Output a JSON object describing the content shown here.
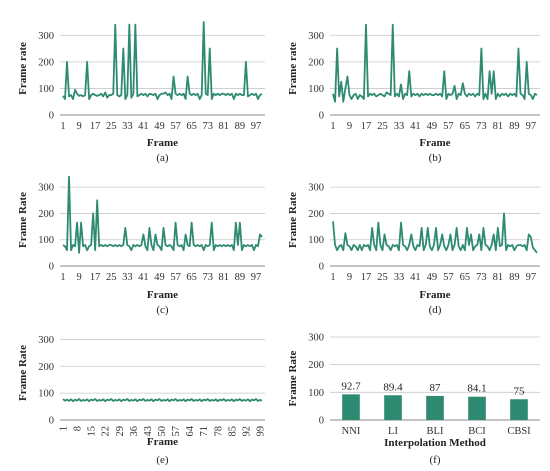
{
  "colors": {
    "series": "#2e8b72",
    "grid": "#c8c8c8",
    "text": "#222222"
  },
  "chart_data": [
    {
      "type": "line",
      "caption": "(a)",
      "xlabel": "Frame",
      "ylabel": "Frame rate",
      "ylim": [
        0,
        350
      ],
      "yticks": [
        0,
        100,
        200,
        300
      ],
      "xlim": [
        1,
        100
      ],
      "xticks": [
        1,
        9,
        17,
        25,
        33,
        41,
        49,
        57,
        65,
        73,
        81,
        89,
        97
      ],
      "grid": true,
      "x": [
        1,
        2,
        3,
        4,
        5,
        6,
        7,
        8,
        9,
        10,
        11,
        12,
        13,
        14,
        15,
        16,
        17,
        18,
        19,
        20,
        21,
        22,
        23,
        24,
        25,
        26,
        27,
        28,
        29,
        30,
        31,
        32,
        33,
        34,
        35,
        36,
        37,
        38,
        39,
        40,
        41,
        42,
        43,
        44,
        45,
        46,
        47,
        48,
        49,
        50,
        51,
        52,
        53,
        54,
        55,
        56,
        57,
        58,
        59,
        60,
        61,
        62,
        63,
        64,
        65,
        66,
        67,
        68,
        69,
        70,
        71,
        72,
        73,
        74,
        75,
        76,
        77,
        78,
        79,
        80,
        81,
        82,
        83,
        84,
        85,
        86,
        87,
        88,
        89,
        90,
        91,
        92,
        93,
        94,
        95,
        96,
        97,
        98,
        99,
        100
      ],
      "values": [
        72,
        60,
        200,
        70,
        75,
        60,
        95,
        80,
        72,
        75,
        70,
        75,
        200,
        60,
        75,
        80,
        75,
        72,
        75,
        80,
        70,
        85,
        65,
        75,
        75,
        80,
        340,
        75,
        70,
        75,
        250,
        60,
        75,
        340,
        65,
        80,
        340,
        70,
        75,
        80,
        75,
        80,
        70,
        80,
        78,
        75,
        80,
        60,
        75,
        80,
        80,
        85,
        75,
        80,
        60,
        145,
        80,
        75,
        80,
        75,
        80,
        60,
        145,
        80,
        75,
        80,
        75,
        80,
        60,
        75,
        350,
        80,
        75,
        250,
        60,
        80,
        75,
        80,
        75,
        80,
        80,
        75,
        80,
        75,
        80,
        60,
        80,
        75,
        80,
        75,
        75,
        200,
        70,
        75,
        80,
        75,
        80,
        60,
        75,
        80
      ]
    },
    {
      "type": "line",
      "caption": "(b)",
      "xlabel": "Frame",
      "ylabel": "Frame rate",
      "ylim": [
        0,
        350
      ],
      "yticks": [
        0,
        100,
        200,
        300
      ],
      "xlim": [
        1,
        100
      ],
      "xticks": [
        1,
        9,
        17,
        25,
        33,
        41,
        49,
        57,
        65,
        73,
        81,
        89,
        97
      ],
      "grid": true,
      "x": [
        1,
        2,
        3,
        4,
        5,
        6,
        7,
        8,
        9,
        10,
        11,
        12,
        13,
        14,
        15,
        16,
        17,
        18,
        19,
        20,
        21,
        22,
        23,
        24,
        25,
        26,
        27,
        28,
        29,
        30,
        31,
        32,
        33,
        34,
        35,
        36,
        37,
        38,
        39,
        40,
        41,
        42,
        43,
        44,
        45,
        46,
        47,
        48,
        49,
        50,
        51,
        52,
        53,
        54,
        55,
        56,
        57,
        58,
        59,
        60,
        61,
        62,
        63,
        64,
        65,
        66,
        67,
        68,
        69,
        70,
        71,
        72,
        73,
        74,
        75,
        76,
        77,
        78,
        79,
        80,
        81,
        82,
        83,
        84,
        85,
        86,
        87,
        88,
        89,
        90,
        91,
        92,
        93,
        94,
        95,
        96,
        97,
        98,
        99,
        100
      ],
      "values": [
        80,
        50,
        250,
        70,
        125,
        50,
        100,
        145,
        75,
        60,
        75,
        80,
        60,
        75,
        70,
        60,
        340,
        70,
        80,
        75,
        80,
        70,
        75,
        80,
        75,
        70,
        85,
        80,
        75,
        340,
        70,
        80,
        70,
        115,
        60,
        80,
        75,
        165,
        70,
        80,
        75,
        80,
        70,
        80,
        75,
        80,
        75,
        80,
        75,
        75,
        80,
        75,
        80,
        70,
        165,
        60,
        80,
        75,
        80,
        110,
        60,
        80,
        75,
        120,
        80,
        70,
        80,
        75,
        80,
        70,
        80,
        75,
        250,
        60,
        80,
        60,
        165,
        80,
        165,
        60,
        80,
        70,
        80,
        75,
        80,
        70,
        80,
        75,
        80,
        70,
        250,
        80,
        75,
        60,
        200,
        80,
        75,
        60,
        80,
        75
      ]
    },
    {
      "type": "line",
      "caption": "(c)",
      "xlabel": "Frame",
      "ylabel": "Frame Rate",
      "ylim": [
        0,
        350
      ],
      "yticks": [
        0,
        100,
        200,
        300
      ],
      "xlim": [
        1,
        100
      ],
      "xticks": [
        1,
        9,
        17,
        25,
        33,
        41,
        49,
        57,
        65,
        73,
        81,
        89,
        97
      ],
      "grid": true,
      "x": [
        1,
        2,
        3,
        4,
        5,
        6,
        7,
        8,
        9,
        10,
        11,
        12,
        13,
        14,
        15,
        16,
        17,
        18,
        19,
        20,
        21,
        22,
        23,
        24,
        25,
        26,
        27,
        28,
        29,
        30,
        31,
        32,
        33,
        34,
        35,
        36,
        37,
        38,
        39,
        40,
        41,
        42,
        43,
        44,
        45,
        46,
        47,
        48,
        49,
        50,
        51,
        52,
        53,
        54,
        55,
        56,
        57,
        58,
        59,
        60,
        61,
        62,
        63,
        64,
        65,
        66,
        67,
        68,
        69,
        70,
        71,
        72,
        73,
        74,
        75,
        76,
        77,
        78,
        79,
        80,
        81,
        82,
        83,
        84,
        85,
        86,
        87,
        88,
        89,
        90,
        91,
        92,
        93,
        94,
        95,
        96,
        97,
        98,
        99,
        100
      ],
      "values": [
        80,
        75,
        60,
        340,
        60,
        80,
        75,
        165,
        50,
        165,
        75,
        80,
        60,
        75,
        80,
        200,
        60,
        250,
        75,
        80,
        75,
        80,
        75,
        80,
        80,
        75,
        80,
        75,
        80,
        75,
        80,
        145,
        80,
        75,
        60,
        80,
        75,
        80,
        75,
        80,
        120,
        75,
        60,
        145,
        80,
        60,
        120,
        80,
        75,
        60,
        145,
        80,
        75,
        80,
        75,
        60,
        165,
        80,
        75,
        80,
        60,
        120,
        80,
        75,
        165,
        80,
        75,
        80,
        75,
        80,
        60,
        80,
        75,
        80,
        165,
        60,
        80,
        75,
        80,
        75,
        80,
        75,
        80,
        75,
        80,
        60,
        165,
        80,
        165,
        60,
        80,
        75,
        80,
        75,
        80,
        60,
        80,
        75,
        120,
        110
      ]
    },
    {
      "type": "line",
      "caption": "(d)",
      "xlabel": "Frame",
      "ylabel": "Frame Rate",
      "ylim": [
        0,
        350
      ],
      "yticks": [
        0,
        100,
        200,
        300
      ],
      "xlim": [
        1,
        100
      ],
      "xticks": [
        1,
        9,
        17,
        25,
        33,
        41,
        49,
        57,
        65,
        73,
        81,
        89,
        97
      ],
      "grid": true,
      "x": [
        1,
        2,
        3,
        4,
        5,
        6,
        7,
        8,
        9,
        10,
        11,
        12,
        13,
        14,
        15,
        16,
        17,
        18,
        19,
        20,
        21,
        22,
        23,
        24,
        25,
        26,
        27,
        28,
        29,
        30,
        31,
        32,
        33,
        34,
        35,
        36,
        37,
        38,
        39,
        40,
        41,
        42,
        43,
        44,
        45,
        46,
        47,
        48,
        49,
        50,
        51,
        52,
        53,
        54,
        55,
        56,
        57,
        58,
        59,
        60,
        61,
        62,
        63,
        64,
        65,
        66,
        67,
        68,
        69,
        70,
        71,
        72,
        73,
        74,
        75,
        76,
        77,
        78,
        79,
        80,
        81,
        82,
        83,
        84,
        85,
        86,
        87,
        88,
        89,
        90,
        91,
        92,
        93,
        94,
        95,
        96,
        97,
        98,
        99,
        100
      ],
      "values": [
        170,
        80,
        60,
        75,
        80,
        60,
        125,
        80,
        75,
        60,
        80,
        75,
        60,
        80,
        60,
        80,
        75,
        80,
        60,
        145,
        80,
        60,
        165,
        80,
        60,
        120,
        80,
        75,
        60,
        80,
        75,
        80,
        60,
        165,
        80,
        75,
        60,
        80,
        120,
        75,
        60,
        80,
        75,
        145,
        60,
        80,
        145,
        75,
        60,
        80,
        145,
        60,
        80,
        120,
        75,
        60,
        80,
        120,
        60,
        80,
        145,
        75,
        60,
        80,
        60,
        145,
        80,
        120,
        60,
        75,
        80,
        120,
        60,
        145,
        80,
        75,
        60,
        80,
        120,
        60,
        145,
        75,
        80,
        200,
        60,
        80,
        75,
        80,
        60,
        75,
        80,
        80,
        75,
        80,
        60,
        120,
        110,
        70,
        60,
        50
      ]
    },
    {
      "type": "line",
      "caption": "(e)",
      "xlabel": "Frame",
      "ylabel": "Frame Rate",
      "ylim": [
        0,
        350
      ],
      "yticks": [
        0,
        100,
        200,
        300
      ],
      "xlim": [
        1,
        100
      ],
      "xticks": [
        1,
        8,
        15,
        22,
        29,
        36,
        43,
        50,
        57,
        64,
        71,
        78,
        85,
        92,
        99
      ],
      "grid": true,
      "x": [
        1,
        2,
        3,
        4,
        5,
        6,
        7,
        8,
        9,
        10,
        11,
        12,
        13,
        14,
        15,
        16,
        17,
        18,
        19,
        20,
        21,
        22,
        23,
        24,
        25,
        26,
        27,
        28,
        29,
        30,
        31,
        32,
        33,
        34,
        35,
        36,
        37,
        38,
        39,
        40,
        41,
        42,
        43,
        44,
        45,
        46,
        47,
        48,
        49,
        50,
        51,
        52,
        53,
        54,
        55,
        56,
        57,
        58,
        59,
        60,
        61,
        62,
        63,
        64,
        65,
        66,
        67,
        68,
        69,
        70,
        71,
        72,
        73,
        74,
        75,
        76,
        77,
        78,
        79,
        80,
        81,
        82,
        83,
        84,
        85,
        86,
        87,
        88,
        89,
        90,
        91,
        92,
        93,
        94,
        95,
        96,
        97,
        98,
        99,
        100
      ],
      "values": [
        78,
        72,
        76,
        71,
        77,
        70,
        76,
        72,
        78,
        71,
        75,
        72,
        77,
        70,
        76,
        73,
        78,
        71,
        75,
        72,
        77,
        70,
        76,
        73,
        78,
        71,
        75,
        72,
        77,
        70,
        76,
        73,
        78,
        71,
        75,
        72,
        77,
        70,
        76,
        73,
        78,
        71,
        75,
        72,
        77,
        70,
        76,
        73,
        78,
        71,
        75,
        72,
        77,
        70,
        76,
        73,
        78,
        71,
        75,
        72,
        77,
        70,
        76,
        73,
        78,
        71,
        75,
        72,
        77,
        70,
        76,
        73,
        78,
        71,
        75,
        72,
        77,
        70,
        76,
        73,
        78,
        71,
        75,
        72,
        77,
        70,
        76,
        73,
        78,
        71,
        75,
        72,
        77,
        70,
        76,
        73,
        78,
        71,
        75,
        72
      ]
    },
    {
      "type": "bar",
      "caption": "(f)",
      "xlabel": "Interpolation Method",
      "ylabel": "Frame Rate",
      "ylim": [
        0,
        300
      ],
      "yticks": [
        0,
        100,
        200,
        300
      ],
      "grid": true,
      "categories": [
        "NNI",
        "LI",
        "BLI",
        "BCI",
        "CBSI"
      ],
      "values": [
        92.7,
        89.4,
        87,
        84.1,
        75
      ],
      "value_labels": [
        "92.7",
        "89.4",
        "87",
        "84.1",
        "75"
      ]
    }
  ]
}
